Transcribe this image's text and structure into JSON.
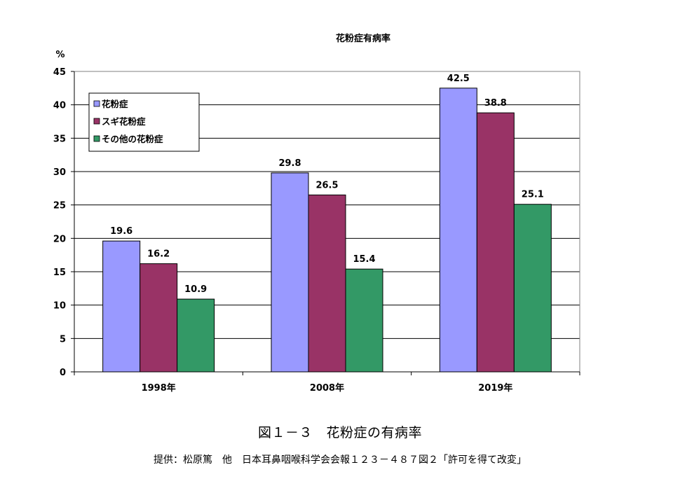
{
  "chart_data": {
    "type": "bar",
    "title": "花粉症有病率",
    "ylabel": "%",
    "xlabel": "",
    "ylim": [
      0,
      45
    ],
    "ytick_step": 5,
    "grid": true,
    "legend_position": "top-left",
    "categories": [
      "1998年",
      "2008年",
      "2019年"
    ],
    "series": [
      {
        "name": "花粉症",
        "color": "#9999ff",
        "values": [
          19.6,
          29.8,
          42.5
        ]
      },
      {
        "name": "スギ花粉症",
        "color": "#993366",
        "values": [
          16.2,
          26.5,
          38.8
        ]
      },
      {
        "name": "その他の花粉症",
        "color": "#339966",
        "values": [
          10.9,
          15.4,
          25.1
        ]
      }
    ]
  },
  "caption": "図１－３　花粉症の有病率",
  "source": "提供：松原篤　他　日本耳鼻咽喉科学会会報１２３－４８７図２「許可を得て改変」"
}
